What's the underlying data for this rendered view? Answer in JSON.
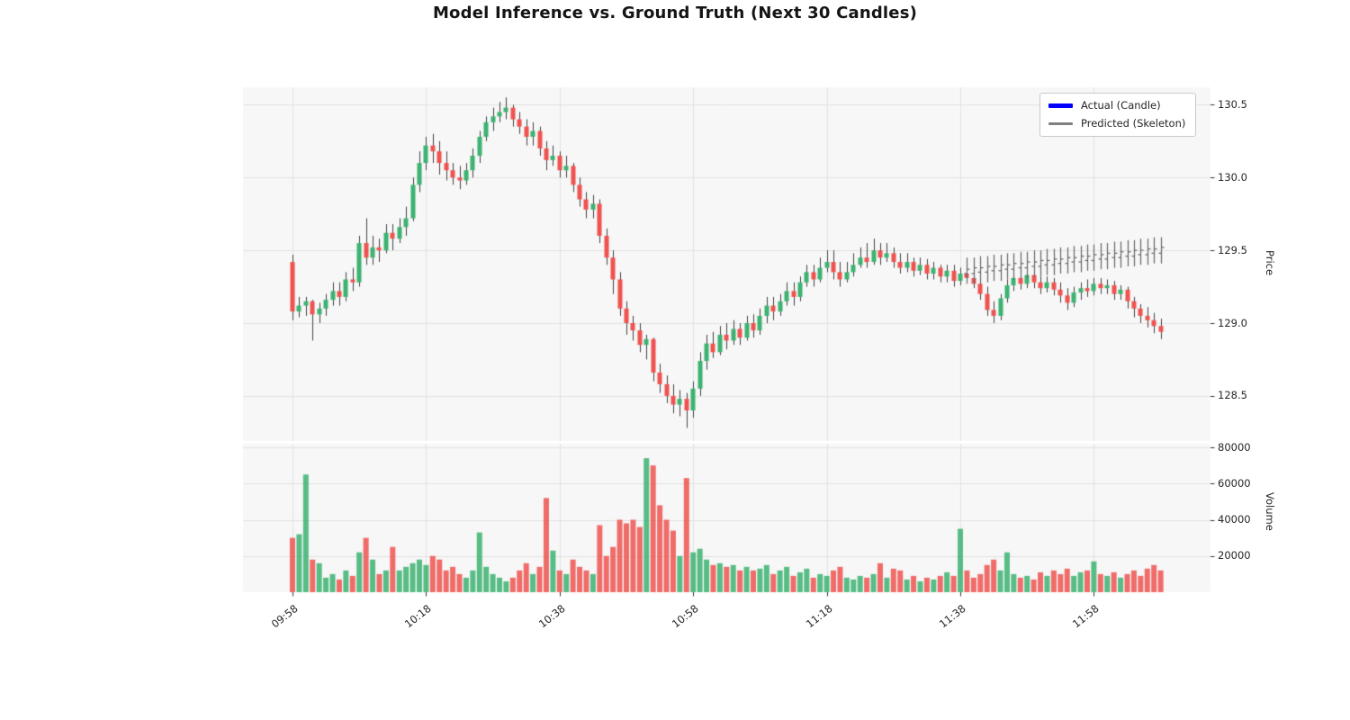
{
  "colors": {
    "up": "#3cb371",
    "down": "#ef5350",
    "wick": "#444444",
    "predicted": "#666666",
    "plot_bg": "#f7f7f7",
    "grid": "#e2e2e2",
    "tick": "#333333",
    "text": "#262626"
  },
  "chart_data": {
    "type": "candlestick+volume",
    "title": "Model Inference vs. Ground Truth (Next 30 Candles)",
    "legend": [
      {
        "label": "Actual (Candle)",
        "color": "#0000ff"
      },
      {
        "label": "Predicted (Skeleton)",
        "color": "#808080"
      }
    ],
    "price_axis_label": "Price",
    "volume_axis_label": "Volume",
    "price_ticks": [
      128.5,
      129.0,
      129.5,
      130.0,
      130.5
    ],
    "volume_ticks": [
      20000,
      40000,
      60000,
      80000
    ],
    "x_ticks": [
      "09:58",
      "10:18",
      "10:38",
      "10:58",
      "11:18",
      "11:38",
      "11:58"
    ],
    "price_ylim": [
      128.19,
      130.62
    ],
    "volume_ylim": [
      0,
      82000
    ],
    "columns": [
      "time",
      "open",
      "high",
      "low",
      "close",
      "volume"
    ],
    "candles": [
      [
        "09:58",
        129.42,
        129.47,
        129.02,
        129.08,
        30000
      ],
      [
        "09:59",
        129.08,
        129.18,
        129.04,
        129.12,
        32000
      ],
      [
        "10:00",
        129.12,
        129.18,
        129.05,
        129.15,
        65000
      ],
      [
        "10:01",
        129.15,
        129.16,
        128.88,
        129.06,
        18000
      ],
      [
        "10:02",
        129.06,
        129.14,
        129.0,
        129.1,
        16000
      ],
      [
        "10:03",
        129.1,
        129.2,
        129.05,
        129.16,
        8000
      ],
      [
        "10:04",
        129.16,
        129.28,
        129.12,
        129.22,
        10000
      ],
      [
        "10:05",
        129.22,
        129.28,
        129.12,
        129.18,
        7000
      ],
      [
        "10:06",
        129.18,
        129.35,
        129.15,
        129.3,
        12000
      ],
      [
        "10:07",
        129.3,
        129.38,
        129.22,
        129.28,
        9000
      ],
      [
        "10:08",
        129.28,
        129.6,
        129.25,
        129.55,
        22000
      ],
      [
        "10:09",
        129.55,
        129.72,
        129.4,
        129.45,
        30000
      ],
      [
        "10:10",
        129.45,
        129.6,
        129.4,
        129.52,
        18000
      ],
      [
        "10:11",
        129.52,
        129.58,
        129.42,
        129.5,
        10000
      ],
      [
        "10:12",
        129.5,
        129.68,
        129.48,
        129.62,
        12000
      ],
      [
        "10:13",
        129.62,
        129.68,
        129.5,
        129.58,
        25000
      ],
      [
        "10:14",
        129.58,
        129.72,
        129.55,
        129.66,
        12000
      ],
      [
        "10:15",
        129.66,
        129.8,
        129.6,
        129.72,
        14000
      ],
      [
        "10:16",
        129.72,
        130.0,
        129.7,
        129.95,
        16000
      ],
      [
        "10:17",
        129.95,
        130.18,
        129.9,
        130.1,
        18000
      ],
      [
        "10:18",
        130.1,
        130.28,
        130.05,
        130.22,
        15000
      ],
      [
        "10:19",
        130.22,
        130.3,
        130.1,
        130.18,
        20000
      ],
      [
        "10:20",
        130.18,
        130.25,
        130.02,
        130.1,
        18000
      ],
      [
        "10:21",
        130.1,
        130.18,
        129.98,
        130.05,
        12000
      ],
      [
        "10:22",
        130.05,
        130.1,
        129.95,
        130.0,
        14000
      ],
      [
        "10:23",
        130.0,
        130.08,
        129.92,
        129.98,
        10000
      ],
      [
        "10:24",
        129.98,
        130.1,
        129.95,
        130.05,
        8000
      ],
      [
        "10:25",
        130.05,
        130.2,
        130.0,
        130.15,
        12000
      ],
      [
        "10:26",
        130.15,
        130.32,
        130.1,
        130.28,
        33000
      ],
      [
        "10:27",
        130.28,
        130.42,
        130.25,
        130.38,
        14000
      ],
      [
        "10:28",
        130.38,
        130.48,
        130.32,
        130.42,
        10000
      ],
      [
        "10:29",
        130.42,
        130.52,
        130.38,
        130.45,
        8000
      ],
      [
        "10:30",
        130.45,
        130.55,
        130.4,
        130.48,
        6000
      ],
      [
        "10:31",
        130.48,
        130.5,
        130.35,
        130.4,
        8000
      ],
      [
        "10:32",
        130.4,
        130.45,
        130.3,
        130.35,
        12000
      ],
      [
        "10:33",
        130.35,
        130.4,
        130.22,
        130.28,
        16000
      ],
      [
        "10:34",
        130.28,
        130.38,
        130.22,
        130.32,
        10000
      ],
      [
        "10:35",
        130.32,
        130.35,
        130.15,
        130.2,
        14000
      ],
      [
        "10:36",
        130.2,
        130.25,
        130.05,
        130.12,
        52000
      ],
      [
        "10:37",
        130.12,
        130.22,
        130.08,
        130.15,
        23000
      ],
      [
        "10:38",
        130.15,
        130.18,
        130.0,
        130.05,
        12000
      ],
      [
        "10:39",
        130.05,
        130.15,
        130.0,
        130.08,
        10000
      ],
      [
        "10:40",
        130.08,
        130.1,
        129.9,
        129.95,
        18000
      ],
      [
        "10:41",
        129.95,
        130.0,
        129.8,
        129.85,
        14000
      ],
      [
        "10:42",
        129.85,
        129.9,
        129.72,
        129.78,
        12000
      ],
      [
        "10:43",
        129.78,
        129.88,
        129.72,
        129.82,
        10000
      ],
      [
        "10:44",
        129.82,
        129.85,
        129.55,
        129.6,
        37000
      ],
      [
        "10:45",
        129.6,
        129.65,
        129.4,
        129.45,
        20000
      ],
      [
        "10:46",
        129.45,
        129.5,
        129.2,
        129.3,
        25000
      ],
      [
        "10:47",
        129.3,
        129.35,
        129.05,
        129.1,
        40000
      ],
      [
        "10:48",
        129.1,
        129.15,
        128.92,
        129.0,
        38000
      ],
      [
        "10:49",
        129.0,
        129.05,
        128.88,
        128.95,
        40000
      ],
      [
        "10:50",
        128.95,
        129.0,
        128.8,
        128.85,
        36000
      ],
      [
        "10:51",
        128.85,
        128.92,
        128.75,
        128.89,
        74000
      ],
      [
        "10:52",
        128.89,
        128.9,
        128.6,
        128.66,
        70000
      ],
      [
        "10:53",
        128.66,
        128.72,
        128.52,
        128.58,
        48000
      ],
      [
        "10:54",
        128.58,
        128.64,
        128.45,
        128.5,
        40000
      ],
      [
        "10:55",
        128.5,
        128.58,
        128.38,
        128.44,
        34000
      ],
      [
        "10:56",
        128.44,
        128.54,
        128.36,
        128.48,
        20000
      ],
      [
        "10:57",
        128.48,
        128.52,
        128.28,
        128.4,
        63000
      ],
      [
        "10:58",
        128.4,
        128.6,
        128.35,
        128.55,
        22000
      ],
      [
        "10:59",
        128.55,
        128.8,
        128.5,
        128.74,
        24000
      ],
      [
        "11:00",
        128.74,
        128.92,
        128.68,
        128.86,
        18000
      ],
      [
        "11:01",
        128.86,
        128.94,
        128.76,
        128.8,
        15000
      ],
      [
        "11:02",
        128.8,
        128.98,
        128.78,
        128.92,
        16000
      ],
      [
        "11:03",
        128.92,
        129.0,
        128.82,
        128.88,
        14000
      ],
      [
        "11:04",
        128.88,
        129.02,
        128.85,
        128.96,
        15000
      ],
      [
        "11:05",
        128.96,
        129.0,
        128.85,
        128.9,
        12000
      ],
      [
        "11:06",
        128.9,
        129.05,
        128.88,
        129.0,
        14000
      ],
      [
        "11:07",
        129.0,
        129.06,
        128.9,
        128.95,
        12000
      ],
      [
        "11:08",
        128.95,
        129.1,
        128.92,
        129.05,
        13000
      ],
      [
        "11:09",
        129.05,
        129.18,
        129.0,
        129.12,
        15000
      ],
      [
        "11:10",
        129.12,
        129.18,
        129.02,
        129.08,
        10000
      ],
      [
        "11:11",
        129.08,
        129.2,
        129.05,
        129.15,
        12000
      ],
      [
        "11:12",
        129.15,
        129.28,
        129.12,
        129.22,
        14000
      ],
      [
        "11:13",
        129.22,
        129.28,
        129.12,
        129.18,
        9000
      ],
      [
        "11:14",
        129.18,
        129.32,
        129.15,
        129.28,
        11000
      ],
      [
        "11:15",
        129.28,
        129.4,
        129.25,
        129.35,
        13000
      ],
      [
        "11:16",
        129.35,
        129.4,
        129.25,
        129.3,
        8000
      ],
      [
        "11:17",
        129.3,
        129.45,
        129.28,
        129.38,
        10000
      ],
      [
        "11:18",
        129.38,
        129.5,
        129.35,
        129.42,
        9000
      ],
      [
        "11:19",
        129.42,
        129.5,
        129.3,
        129.35,
        12000
      ],
      [
        "11:20",
        129.35,
        129.42,
        129.25,
        129.3,
        14000
      ],
      [
        "11:21",
        129.3,
        129.42,
        129.28,
        129.35,
        8000
      ],
      [
        "11:22",
        129.35,
        129.48,
        129.32,
        129.4,
        7000
      ],
      [
        "11:23",
        129.4,
        129.52,
        129.38,
        129.45,
        9000
      ],
      [
        "11:24",
        129.45,
        129.55,
        129.38,
        129.42,
        8000
      ],
      [
        "11:25",
        129.42,
        129.58,
        129.4,
        129.5,
        10000
      ],
      [
        "11:26",
        129.5,
        129.55,
        129.4,
        129.45,
        16000
      ],
      [
        "11:27",
        129.45,
        129.55,
        129.42,
        129.48,
        8000
      ],
      [
        "11:28",
        129.48,
        129.52,
        129.38,
        129.42,
        13000
      ],
      [
        "11:29",
        129.42,
        129.48,
        129.34,
        129.38,
        12000
      ],
      [
        "11:30",
        129.38,
        129.48,
        129.35,
        129.42,
        7000
      ],
      [
        "11:31",
        129.42,
        129.45,
        129.32,
        129.36,
        9000
      ],
      [
        "11:32",
        129.36,
        129.45,
        129.33,
        129.4,
        6000
      ],
      [
        "11:33",
        129.4,
        129.44,
        129.3,
        129.34,
        8000
      ],
      [
        "11:34",
        129.34,
        129.42,
        129.3,
        129.38,
        7000
      ],
      [
        "11:35",
        129.38,
        129.4,
        129.28,
        129.32,
        9000
      ],
      [
        "11:36",
        129.32,
        129.4,
        129.28,
        129.36,
        11000
      ],
      [
        "11:37",
        129.36,
        129.4,
        129.25,
        129.29,
        9000
      ],
      [
        "11:38",
        129.29,
        129.38,
        129.26,
        129.34,
        35000
      ],
      [
        "11:39",
        129.34,
        129.4,
        129.28,
        129.31,
        12000
      ],
      [
        "11:40",
        129.31,
        129.38,
        129.24,
        129.27,
        8000
      ],
      [
        "11:41",
        129.27,
        129.33,
        129.16,
        129.2,
        10000
      ],
      [
        "11:42",
        129.2,
        129.25,
        129.05,
        129.09,
        15000
      ],
      [
        "11:43",
        129.09,
        129.15,
        129.0,
        129.05,
        18000
      ],
      [
        "11:44",
        129.05,
        129.2,
        129.02,
        129.17,
        12000
      ],
      [
        "11:45",
        129.17,
        129.3,
        129.14,
        129.26,
        22000
      ],
      [
        "11:46",
        129.26,
        129.35,
        129.22,
        129.31,
        10000
      ],
      [
        "11:47",
        129.31,
        129.35,
        129.23,
        129.27,
        8000
      ],
      [
        "11:48",
        129.27,
        129.38,
        129.24,
        129.33,
        9000
      ],
      [
        "11:49",
        129.33,
        129.36,
        129.24,
        129.28,
        7000
      ],
      [
        "11:50",
        129.28,
        129.32,
        129.2,
        129.24,
        11000
      ],
      [
        "11:51",
        129.24,
        129.32,
        129.21,
        129.28,
        9000
      ],
      [
        "11:52",
        129.28,
        129.31,
        129.19,
        129.23,
        12000
      ],
      [
        "11:53",
        129.23,
        129.28,
        129.14,
        129.19,
        10000
      ],
      [
        "11:54",
        129.19,
        129.24,
        129.09,
        129.14,
        13000
      ],
      [
        "11:55",
        129.14,
        129.25,
        129.11,
        129.21,
        9000
      ],
      [
        "11:56",
        129.21,
        129.28,
        129.16,
        129.24,
        11000
      ],
      [
        "11:57",
        129.24,
        129.3,
        129.18,
        129.22,
        12000
      ],
      [
        "11:58",
        129.22,
        129.31,
        129.19,
        129.27,
        17000
      ],
      [
        "11:59",
        129.27,
        129.31,
        129.2,
        129.24,
        10000
      ],
      [
        "12:00",
        129.24,
        129.3,
        129.2,
        129.26,
        9000
      ],
      [
        "12:01",
        129.26,
        129.29,
        129.16,
        129.2,
        11000
      ],
      [
        "12:02",
        129.2,
        129.26,
        129.16,
        129.23,
        8000
      ],
      [
        "12:03",
        129.23,
        129.25,
        129.1,
        129.15,
        10000
      ],
      [
        "12:04",
        129.15,
        129.18,
        129.04,
        129.1,
        12000
      ],
      [
        "12:05",
        129.1,
        129.13,
        129.0,
        129.05,
        9000
      ],
      [
        "12:06",
        129.05,
        129.11,
        128.97,
        129.02,
        13000
      ],
      [
        "12:07",
        129.02,
        129.07,
        128.93,
        128.98,
        15000
      ],
      [
        "12:08",
        128.98,
        129.03,
        128.89,
        128.94,
        12000
      ]
    ],
    "predicted_columns": [
      "time",
      "open",
      "high",
      "low",
      "close"
    ],
    "predicted": [
      [
        "11:39",
        129.34,
        129.45,
        129.27,
        129.37
      ],
      [
        "11:40",
        129.34,
        129.45,
        129.27,
        129.38
      ],
      [
        "11:41",
        129.35,
        129.46,
        129.28,
        129.38
      ],
      [
        "11:42",
        129.35,
        129.46,
        129.28,
        129.39
      ],
      [
        "11:43",
        129.36,
        129.47,
        129.29,
        129.39
      ],
      [
        "11:44",
        129.36,
        129.47,
        129.29,
        129.4
      ],
      [
        "11:45",
        129.37,
        129.48,
        129.3,
        129.4
      ],
      [
        "11:46",
        129.37,
        129.48,
        129.3,
        129.41
      ],
      [
        "11:47",
        129.38,
        129.49,
        129.31,
        129.41
      ],
      [
        "11:48",
        129.38,
        129.49,
        129.31,
        129.42
      ],
      [
        "11:49",
        129.39,
        129.5,
        129.32,
        129.42
      ],
      [
        "11:50",
        129.39,
        129.5,
        129.32,
        129.43
      ],
      [
        "11:51",
        129.4,
        129.51,
        129.33,
        129.43
      ],
      [
        "11:52",
        129.4,
        129.51,
        129.33,
        129.44
      ],
      [
        "11:53",
        129.41,
        129.52,
        129.34,
        129.44
      ],
      [
        "11:54",
        129.41,
        129.52,
        129.34,
        129.45
      ],
      [
        "11:55",
        129.42,
        129.53,
        129.35,
        129.45
      ],
      [
        "11:56",
        129.42,
        129.53,
        129.35,
        129.46
      ],
      [
        "11:57",
        129.43,
        129.54,
        129.36,
        129.46
      ],
      [
        "11:58",
        129.43,
        129.54,
        129.36,
        129.47
      ],
      [
        "11:59",
        129.44,
        129.55,
        129.37,
        129.47
      ],
      [
        "12:00",
        129.44,
        129.55,
        129.37,
        129.48
      ],
      [
        "12:01",
        129.45,
        129.56,
        129.38,
        129.48
      ],
      [
        "12:02",
        129.45,
        129.56,
        129.38,
        129.49
      ],
      [
        "12:03",
        129.46,
        129.57,
        129.39,
        129.49
      ],
      [
        "12:04",
        129.46,
        129.57,
        129.39,
        129.5
      ],
      [
        "12:05",
        129.47,
        129.58,
        129.4,
        129.5
      ],
      [
        "12:06",
        129.47,
        129.58,
        129.4,
        129.51
      ],
      [
        "12:07",
        129.48,
        129.59,
        129.41,
        129.51
      ],
      [
        "12:08",
        129.48,
        129.59,
        129.41,
        129.52
      ]
    ]
  }
}
